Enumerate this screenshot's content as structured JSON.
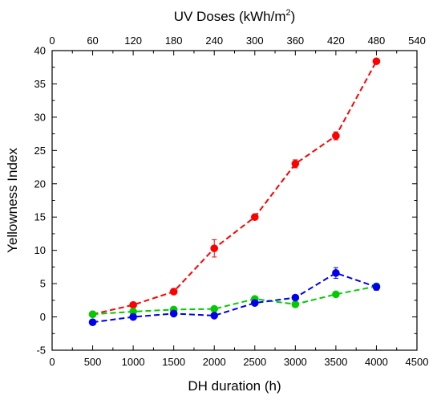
{
  "chart_data": {
    "type": "line",
    "xlabel": "DH duration (h)",
    "x2label": "UV Doses (kWh/m",
    "x2label_sup": "2",
    "x2label_close": ")",
    "ylabel": "Yellowness Index",
    "xlim": [
      0,
      4500
    ],
    "x2lim": [
      0,
      540
    ],
    "ylim": [
      -5,
      40
    ],
    "x_ticks": [
      0,
      500,
      1000,
      1500,
      2000,
      2500,
      3000,
      3500,
      4000,
      4500
    ],
    "x2_ticks": [
      0,
      60,
      120,
      180,
      240,
      300,
      360,
      420,
      480,
      540
    ],
    "y_ticks": [
      -5,
      0,
      5,
      10,
      15,
      20,
      25,
      30,
      35,
      40
    ],
    "grid": false,
    "legend": "none",
    "x": [
      500,
      1000,
      1500,
      2000,
      2500,
      3000,
      3500,
      4000
    ],
    "series": [
      {
        "color": "#ff0000",
        "values": [
          0.4,
          1.8,
          3.8,
          10.3,
          15.0,
          23.0,
          27.2,
          38.4
        ],
        "errors": [
          0.2,
          0.3,
          0.3,
          1.3,
          0.3,
          0.6,
          0.6,
          0.3
        ]
      },
      {
        "color": "#00cc00",
        "values": [
          0.4,
          0.8,
          1.1,
          1.2,
          2.7,
          1.9,
          3.4,
          4.6
        ],
        "errors": [
          0.1,
          0.1,
          0.1,
          0.1,
          0.2,
          0.2,
          0.2,
          0.2
        ]
      },
      {
        "color": "#0000ee",
        "values": [
          -0.8,
          0.0,
          0.5,
          0.2,
          2.1,
          2.9,
          6.6,
          4.5
        ],
        "errors": [
          0.1,
          0.1,
          0.1,
          0.1,
          0.2,
          0.2,
          0.8,
          0.5
        ]
      }
    ]
  }
}
